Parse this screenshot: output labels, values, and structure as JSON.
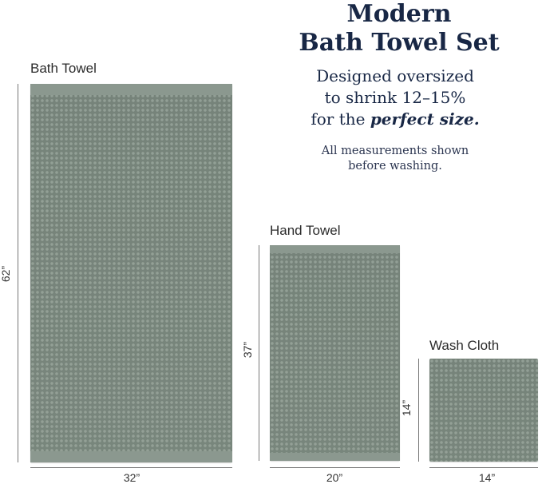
{
  "title": {
    "line1": "Modern",
    "line2": "Bath Towel Set"
  },
  "tagline": {
    "line1": "Designed oversized",
    "line2": "to shrink 12–15%",
    "line3_prefix": "for the ",
    "line3_emphasis": "perfect size."
  },
  "note": {
    "line1": "All measurements shown",
    "line2": "before washing."
  },
  "towels": {
    "bath": {
      "label": "Bath Towel",
      "width": "32”",
      "height": "62”"
    },
    "hand": {
      "label": "Hand Towel",
      "width": "20”",
      "height": "37”"
    },
    "wash": {
      "label": "Wash Cloth",
      "width": "14”",
      "height": "14”"
    }
  },
  "colors": {
    "towel": "#7c8a80",
    "heading": "#182745"
  }
}
